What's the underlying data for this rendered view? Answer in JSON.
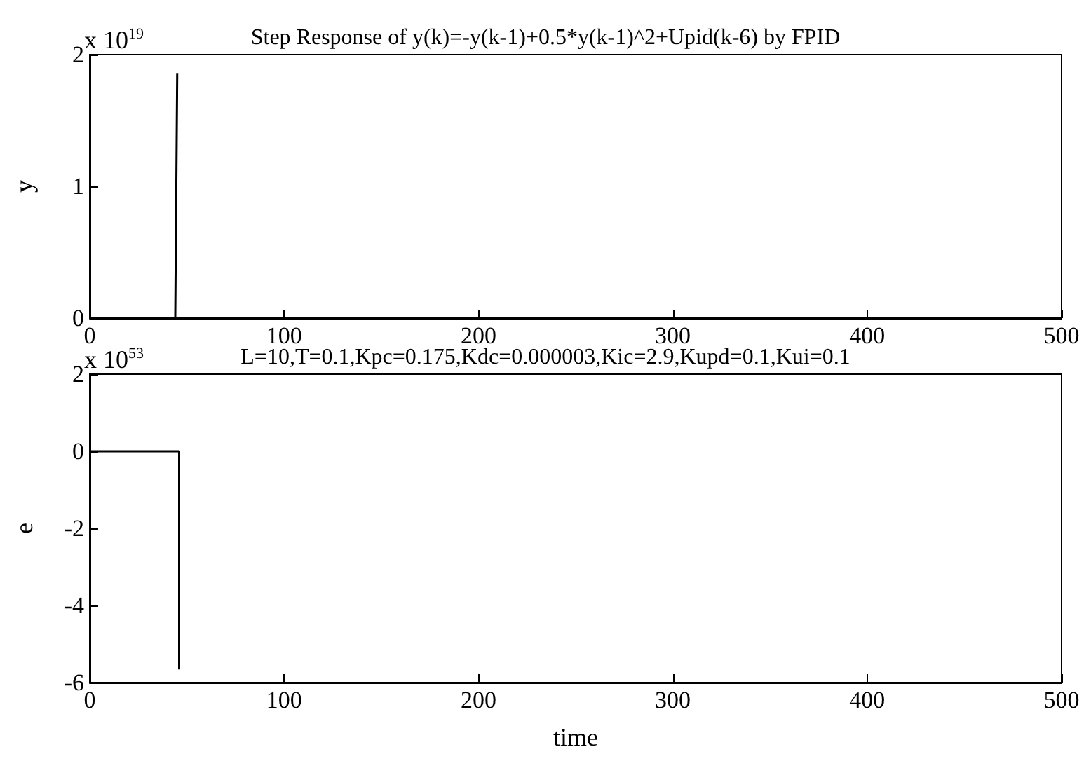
{
  "chart_data": [
    {
      "type": "line",
      "title": "Step Response of y(k)=-y(k-1)+0.5*y(k-1)^2+Upid(k-6) by FPID",
      "ylabel": "y",
      "annotations": [
        "x 10$^{19}$"
      ],
      "xlim": [
        0,
        500
      ],
      "xticks": [
        0,
        100,
        200,
        300,
        400,
        500
      ],
      "ylim": [
        0,
        2
      ],
      "yticks": [
        0,
        1,
        2
      ],
      "grid": false,
      "marker": "none",
      "line_style": "solid",
      "series": [
        {
          "color": "#000000",
          "x": [
            0,
            44,
            45
          ],
          "values": [
            0,
            0,
            1.86
          ]
        }
      ]
    },
    {
      "type": "line",
      "title": "L=10,T=0.1,Kpc=0.175,Kdc=0.000003,Kic=2.9,Kupd=0.1,Kui=0.1",
      "xlabel": "time",
      "ylabel": "e",
      "annotations": [
        "x 10$^{53}$"
      ],
      "xlim": [
        0,
        500
      ],
      "xticks": [
        0,
        100,
        200,
        300,
        400,
        500
      ],
      "ylim": [
        -6,
        2
      ],
      "yticks": [
        -6,
        -4,
        -2,
        0,
        2
      ],
      "grid": false,
      "marker": "none",
      "line_style": "solid",
      "series": [
        {
          "color": "#000000",
          "x": [
            0,
            46,
            46
          ],
          "values": [
            0,
            0,
            -5.66
          ]
        }
      ]
    }
  ]
}
